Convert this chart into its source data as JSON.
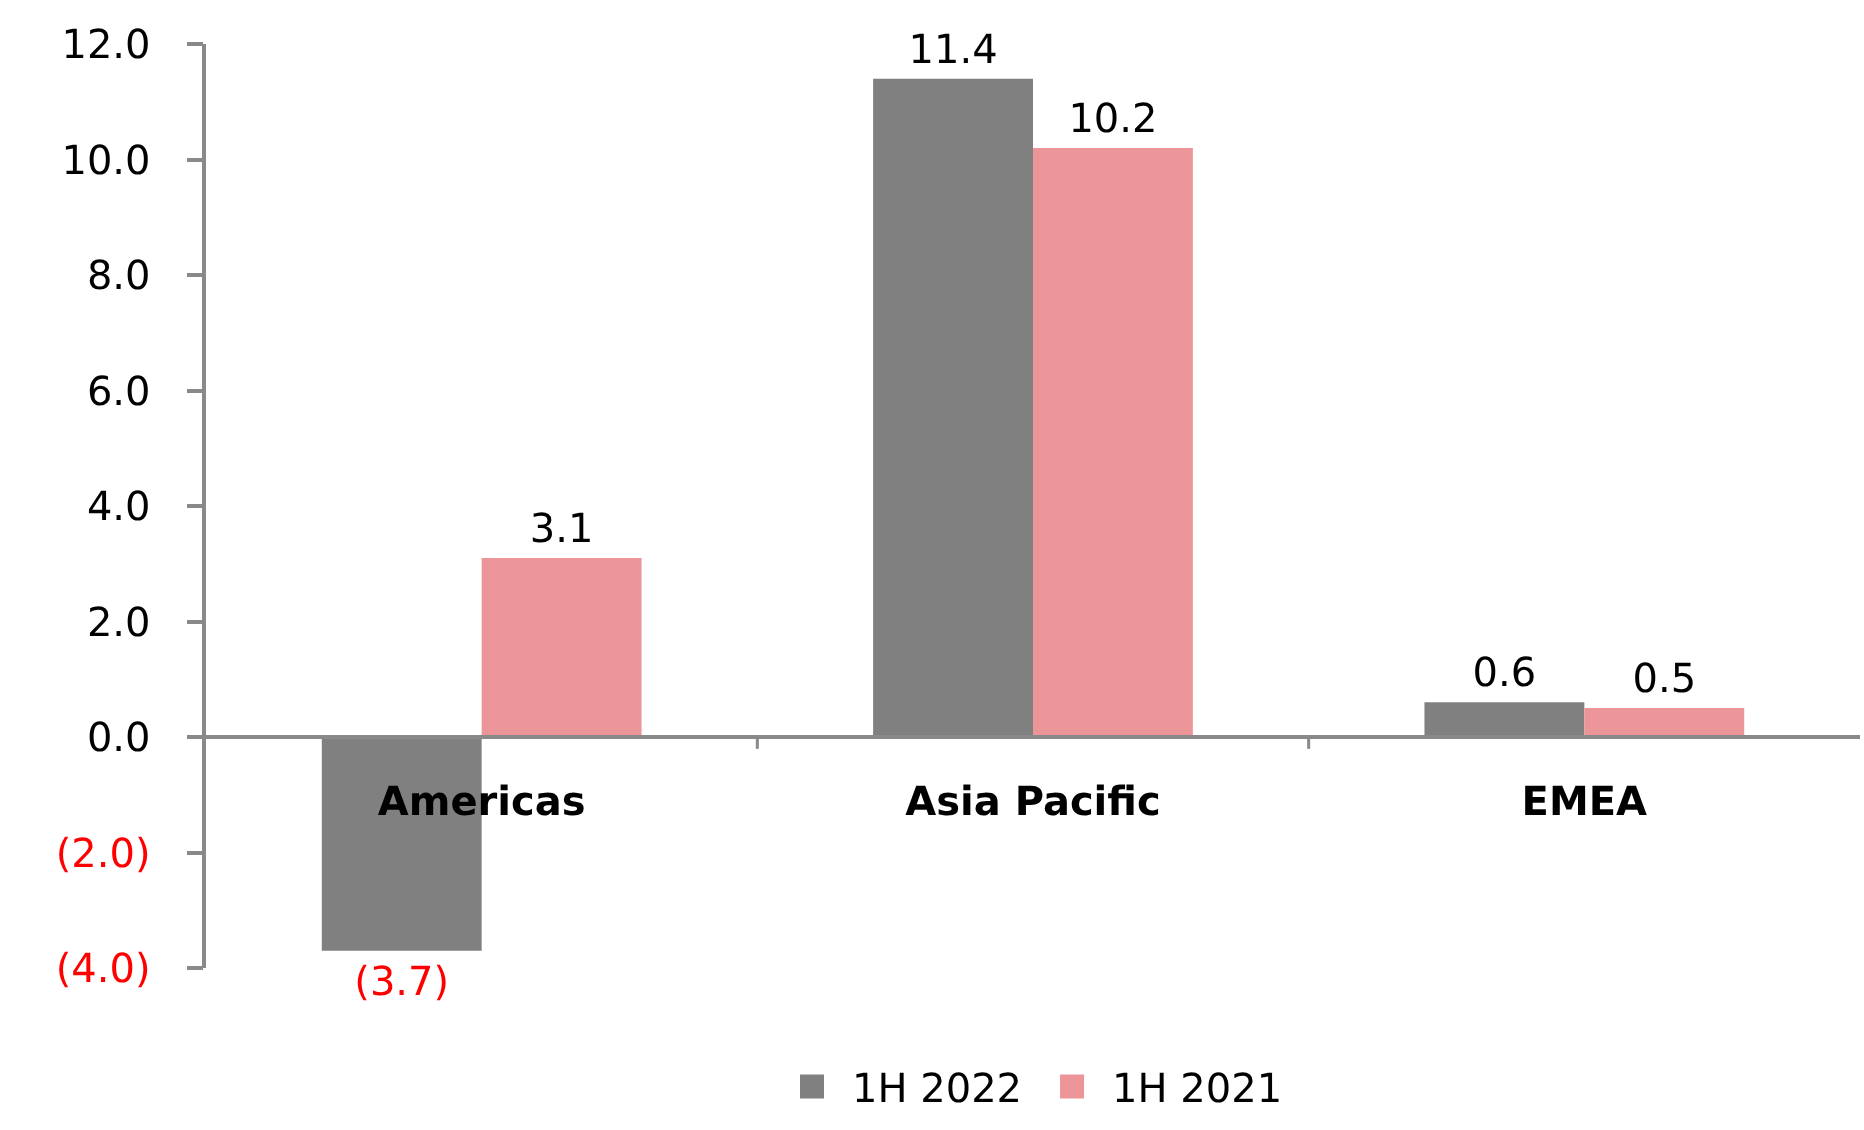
{
  "chart_data": {
    "type": "bar",
    "categories": [
      "Americas",
      "Asia Pacific",
      "EMEA"
    ],
    "series": [
      {
        "name": "1H 2022",
        "color": "#808080",
        "values": [
          -3.7,
          11.4,
          0.6
        ],
        "value_labels": [
          "(3.7)",
          "11.4",
          "0.6"
        ]
      },
      {
        "name": "1H 2021",
        "color": "#ec9598",
        "values": [
          3.1,
          10.2,
          0.5
        ],
        "value_labels": [
          "3.1",
          "10.2",
          "0.5"
        ]
      }
    ],
    "ylim": [
      -4,
      12
    ],
    "yticks": [
      {
        "value": -4,
        "label": "(4.0)"
      },
      {
        "value": -2,
        "label": "(2.0)"
      },
      {
        "value": 0,
        "label": "0.0"
      },
      {
        "value": 2,
        "label": "2.0"
      },
      {
        "value": 4,
        "label": "4.0"
      },
      {
        "value": 6,
        "label": "6.0"
      },
      {
        "value": 8,
        "label": "8.0"
      },
      {
        "value": 10,
        "label": "10.0"
      },
      {
        "value": 12,
        "label": "12.0"
      }
    ],
    "legend": "bottom"
  }
}
